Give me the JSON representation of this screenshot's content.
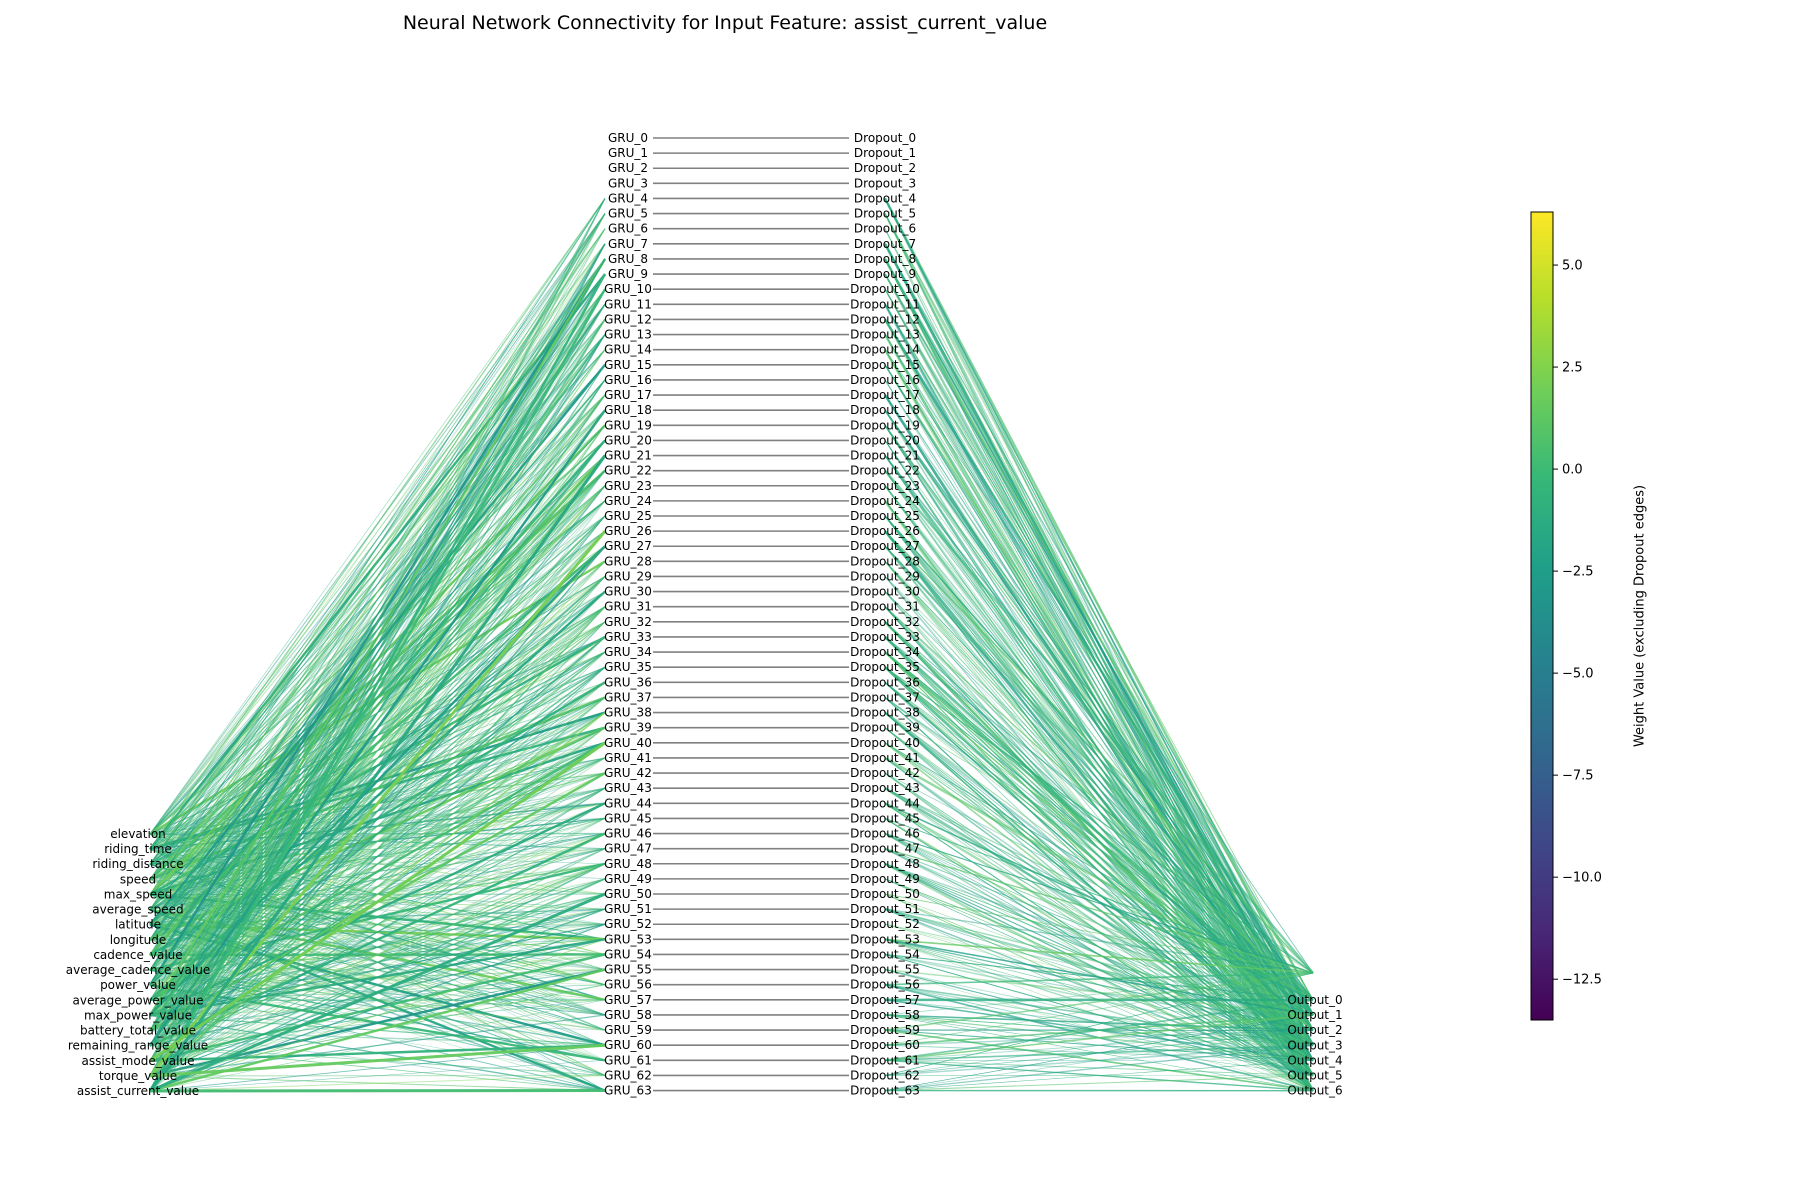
{
  "title": "Neural Network Connectivity for Input Feature: assist_current_value",
  "input_nodes": [
    "elevation",
    "riding_time",
    "riding_distance",
    "speed",
    "max_speed",
    "average_speed",
    "latitude",
    "longitude",
    "cadence_value",
    "average_cadence_value",
    "power_value",
    "average_power_value",
    "max_power_value",
    "battery_total_value",
    "remaining_range_value",
    "assist_mode_value",
    "torque_value",
    "assist_current_value"
  ],
  "gru_count": 64,
  "gru_prefix": "GRU_",
  "dropout_prefix": "Dropout_",
  "output_nodes": [
    "Output_0",
    "Output_1",
    "Output_2",
    "Output_3",
    "Output_4",
    "Output_5",
    "Output_6"
  ],
  "colorbar": {
    "label": "Weight Value (excluding Dropout edges)",
    "min": -13.5,
    "max": 6.3,
    "colormap": "viridis",
    "ticks": [
      5.0,
      2.5,
      0.0,
      -2.5,
      -5.0,
      -7.5,
      -10.0,
      -12.5
    ],
    "tick_labels": [
      "5.0",
      "2.5",
      "0.0",
      "−2.5",
      "−5.0",
      "−7.5",
      "−10.0",
      "−12.5"
    ]
  },
  "colors": {
    "dropout_edge": "#808080",
    "viridis": [
      "#440154",
      "#482878",
      "#3e4989",
      "#31688e",
      "#26828e",
      "#1f9e89",
      "#35b779",
      "#6ece58",
      "#b5de2b",
      "#fde725"
    ]
  }
}
